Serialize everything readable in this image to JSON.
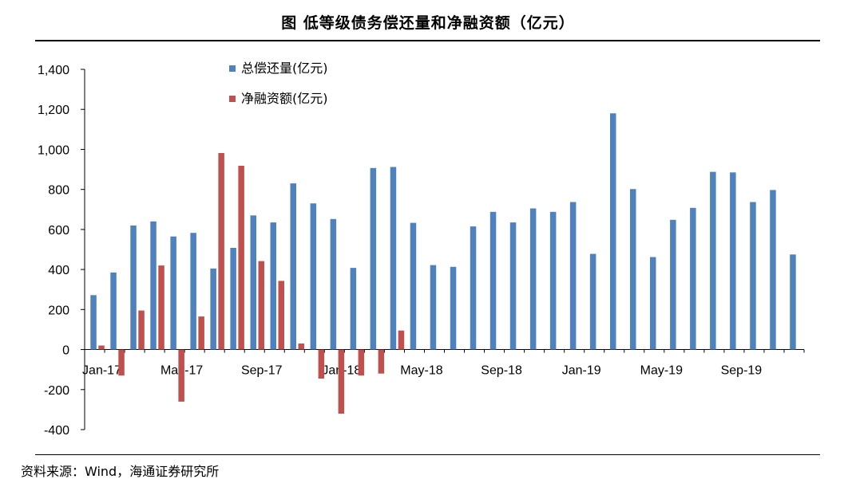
{
  "title": "图 低等级债务偿还量和净融资额（亿元）",
  "source": "资料来源：Wind，海通证券研究所",
  "chart_data": {
    "type": "bar",
    "ylim": [
      -400,
      1400
    ],
    "yticks": [
      -400,
      -200,
      0,
      200,
      400,
      600,
      800,
      1000,
      1200,
      1400
    ],
    "ytick_labels": [
      "-400",
      "-200",
      "0",
      "200",
      "400",
      "600",
      "800",
      "1,000",
      "1,200",
      "1,400"
    ],
    "categories": [
      "Jan-17",
      "Feb-17",
      "Mar-17",
      "Apr-17",
      "May-17",
      "Jun-17",
      "Jul-17",
      "Aug-17",
      "Sep-17",
      "Oct-17",
      "Nov-17",
      "Dec-17",
      "Jan-18",
      "Feb-18",
      "Mar-18",
      "Apr-18",
      "May-18",
      "Jun-18",
      "Jul-18",
      "Aug-18",
      "Sep-18",
      "Oct-18",
      "Nov-18",
      "Dec-18",
      "Jan-19",
      "Feb-19",
      "Mar-19",
      "Apr-19",
      "May-19",
      "Jun-19",
      "Jul-19",
      "Aug-19",
      "Sep-19",
      "Oct-19",
      "Nov-19",
      "Dec-19"
    ],
    "x_tick_labels": [
      "Jan-17",
      "May-17",
      "Sep-17",
      "Jan-18",
      "May-18",
      "Sep-18",
      "Jan-19",
      "May-19",
      "Sep-19"
    ],
    "x_tick_label_indices": [
      0,
      4,
      8,
      12,
      16,
      20,
      24,
      28,
      32
    ],
    "legend_position": "top-left",
    "grid": false,
    "series": [
      {
        "name": "总偿还量(亿元)",
        "color": "#4f81bd",
        "values": [
          272,
          385,
          620,
          640,
          565,
          583,
          405,
          508,
          670,
          635,
          830,
          730,
          652,
          408,
          907,
          912,
          633,
          422,
          413,
          615,
          688,
          635,
          705,
          688,
          737,
          478,
          1180,
          802,
          462,
          648,
          708,
          888,
          885,
          737,
          797,
          475
        ]
      },
      {
        "name": "净融资额(亿元)",
        "color": "#c0504d",
        "values": [
          20,
          -130,
          195,
          420,
          -260,
          165,
          982,
          918,
          442,
          343,
          30,
          -145,
          -320,
          -130,
          -120,
          95,
          null,
          null,
          null,
          null,
          null,
          null,
          null,
          null,
          null,
          null,
          null,
          null,
          null,
          null,
          null,
          null,
          null,
          null,
          null,
          null
        ]
      }
    ]
  }
}
